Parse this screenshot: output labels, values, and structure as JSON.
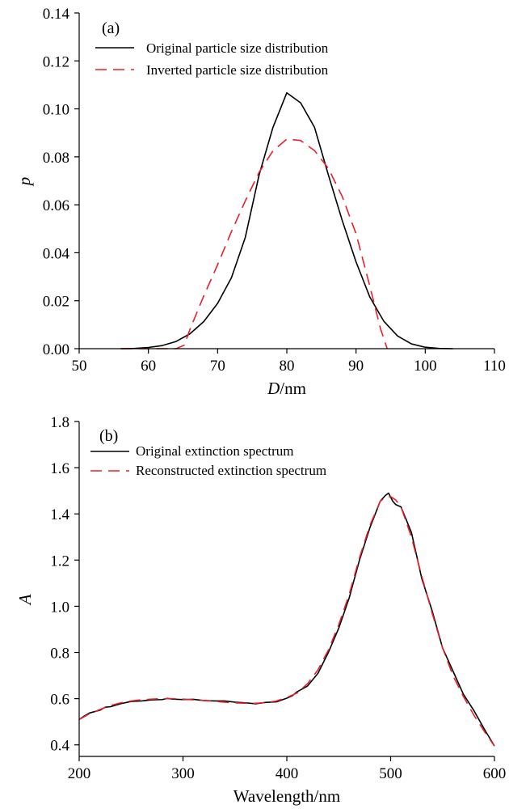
{
  "chart_data": [
    {
      "type": "line",
      "panel_label": "(a)",
      "xlabel_italic": "D",
      "xlabel_rest": "/nm",
      "ylabel": "p",
      "xlim": [
        50,
        110
      ],
      "ylim": [
        0,
        0.14
      ],
      "xticks": [
        50,
        60,
        70,
        80,
        90,
        100,
        110
      ],
      "yticks": [
        0.0,
        0.02,
        0.04,
        0.06,
        0.08,
        0.1,
        0.12,
        0.14
      ],
      "x_tick_labels": [
        "50",
        "60",
        "70",
        "80",
        "90",
        "100",
        "110"
      ],
      "y_tick_labels": [
        "0.00",
        "0.02",
        "0.04",
        "0.06",
        "0.08",
        "0.10",
        "0.12",
        "0.14"
      ],
      "grid": false,
      "legend_position": "top-left",
      "series": [
        {
          "name": "Original particle size distribution",
          "color": "#000000",
          "style": "solid",
          "x": [
            56,
            58,
            60,
            62,
            64,
            66,
            68,
            70,
            72,
            74,
            76,
            78,
            80,
            82,
            84,
            86,
            88,
            90,
            92,
            94,
            96,
            98,
            100,
            102,
            104
          ],
          "y": [
            0.0,
            0.0001,
            0.0005,
            0.0013,
            0.003,
            0.0062,
            0.0113,
            0.0189,
            0.0296,
            0.0464,
            0.0725,
            0.0923,
            0.1067,
            0.1025,
            0.0923,
            0.0725,
            0.0535,
            0.0362,
            0.0215,
            0.0115,
            0.0053,
            0.002,
            0.0006,
            0.0001,
            0.0
          ]
        },
        {
          "name": "Inverted particle size distribution",
          "color": "#e8202a",
          "style": "dashed",
          "x": [
            56,
            60,
            64,
            65.2,
            66,
            68,
            70,
            72,
            74,
            76,
            78,
            80,
            82,
            84,
            86,
            88,
            90,
            92,
            93.5,
            94.5
          ],
          "y": [
            0.0,
            0.0,
            0.0,
            0.0015,
            0.008,
            0.022,
            0.035,
            0.0488,
            0.0616,
            0.0736,
            0.0825,
            0.0874,
            0.0868,
            0.0826,
            0.0752,
            0.0635,
            0.048,
            0.026,
            0.0087,
            0.0
          ]
        }
      ]
    },
    {
      "type": "line",
      "panel_label": "(b)",
      "xlabel": "Wavelength/nm",
      "ylabel": "A",
      "xlim": [
        200,
        600
      ],
      "ylim": [
        0.35,
        1.8
      ],
      "xticks": [
        200,
        300,
        400,
        500,
        600
      ],
      "yticks": [
        0.4,
        0.6,
        0.8,
        1.0,
        1.2,
        1.4,
        1.6,
        1.8
      ],
      "x_tick_labels": [
        "200",
        "300",
        "400",
        "500",
        "600"
      ],
      "y_tick_labels": [
        "0.4",
        "0.6",
        "0.8",
        "1.0",
        "1.2",
        "1.4",
        "1.6",
        "1.8"
      ],
      "grid": false,
      "legend_position": "top-left",
      "series": [
        {
          "name": "Original extinction spectrum",
          "color": "#000000",
          "style": "solid",
          "x": [
            200,
            205,
            210,
            220,
            225,
            230,
            240,
            250,
            260,
            270,
            280,
            285,
            290,
            300,
            310,
            320,
            330,
            340,
            350,
            360,
            370,
            380,
            390,
            400,
            405,
            410,
            420,
            430,
            440,
            450,
            460,
            470,
            480,
            490,
            495,
            498,
            502,
            505,
            510,
            520,
            530,
            540,
            550,
            560,
            570,
            580,
            590,
            600
          ],
          "y": [
            0.51,
            0.525,
            0.538,
            0.55,
            0.563,
            0.565,
            0.578,
            0.588,
            0.59,
            0.595,
            0.596,
            0.601,
            0.598,
            0.596,
            0.597,
            0.592,
            0.59,
            0.59,
            0.585,
            0.582,
            0.578,
            0.584,
            0.586,
            0.602,
            0.612,
            0.63,
            0.655,
            0.71,
            0.8,
            0.905,
            1.035,
            1.2,
            1.34,
            1.455,
            1.48,
            1.49,
            1.455,
            1.44,
            1.43,
            1.32,
            1.12,
            0.98,
            0.82,
            0.72,
            0.62,
            0.55,
            0.47,
            0.395
          ]
        },
        {
          "name": "Reconstructed extinction spectrum",
          "color": "#e8202a",
          "style": "dashed",
          "x": [
            200,
            210,
            220,
            230,
            240,
            250,
            260,
            270,
            280,
            290,
            300,
            310,
            320,
            330,
            340,
            350,
            360,
            370,
            380,
            390,
            400,
            410,
            420,
            430,
            440,
            450,
            460,
            470,
            480,
            490,
            495,
            500,
            505,
            510,
            520,
            530,
            540,
            550,
            560,
            570,
            580,
            590,
            600
          ],
          "y": [
            0.51,
            0.535,
            0.553,
            0.57,
            0.582,
            0.59,
            0.595,
            0.598,
            0.6,
            0.6,
            0.598,
            0.595,
            0.592,
            0.589,
            0.585,
            0.582,
            0.58,
            0.58,
            0.583,
            0.59,
            0.605,
            0.625,
            0.665,
            0.725,
            0.81,
            0.92,
            1.05,
            1.21,
            1.35,
            1.455,
            1.47,
            1.475,
            1.46,
            1.43,
            1.3,
            1.13,
            0.97,
            0.82,
            0.7,
            0.61,
            0.53,
            0.46,
            0.395
          ]
        }
      ]
    }
  ]
}
